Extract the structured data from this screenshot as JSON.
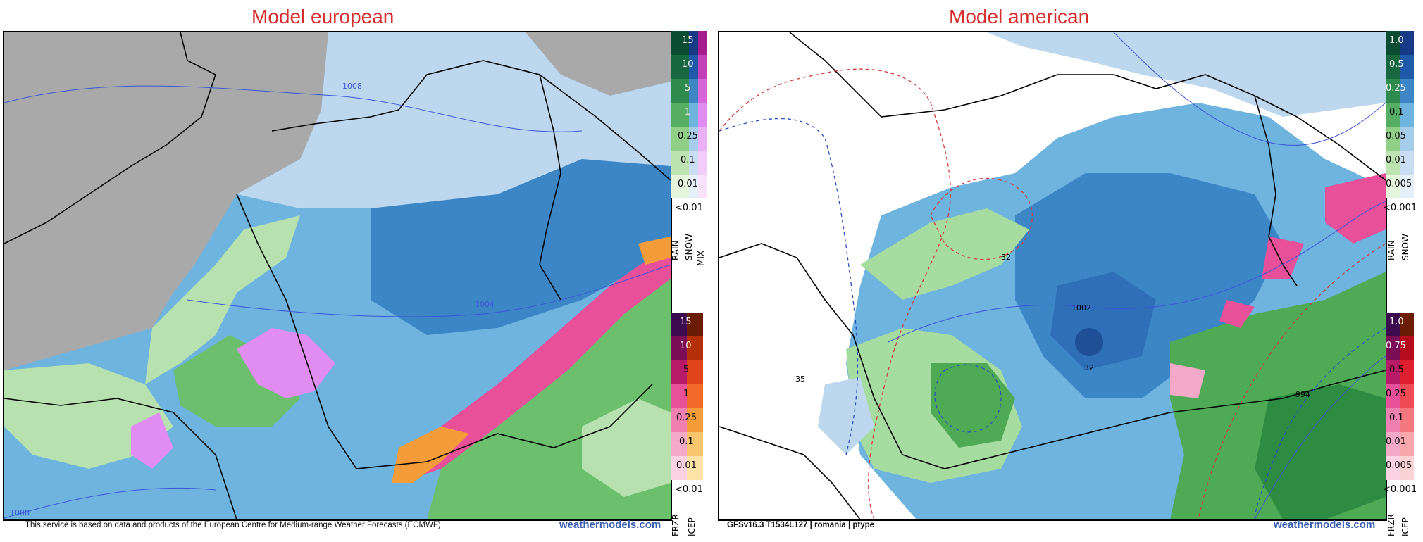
{
  "titles": {
    "left": "Model european",
    "right": "Model american"
  },
  "footer": {
    "left_text": "This service is based on data and products of the European Centre for Medium-range Weather Forecasts (ECMWF)",
    "left_brand": "weathermodels.com",
    "right_text": "GFSv16.3 T1534L127 | romania | ptype",
    "right_brand": "weathermodels.com"
  },
  "left_map": {
    "isobar_labels": [
      "1008",
      "1004",
      "1008"
    ],
    "colors": {
      "land_gray": "#a9a9a9",
      "rain_light": "#bcd7ee",
      "rain_mid": "#6fb3df",
      "rain_dark": "#3d86c6",
      "snow_green": "#6cbf6c",
      "snow_light": "#b7e2b0",
      "mix": "#e18cf0",
      "frzr": "#e8509a",
      "icep": "#f59c3a"
    }
  },
  "right_map": {
    "isobar_labels": [
      "32",
      "1002",
      "32",
      "35",
      "994"
    ],
    "colors": {
      "rain_light": "#bcd7ee",
      "rain_mid": "#6fb3df",
      "rain_dark": "#2f6fb7",
      "snow_green": "#4faa55",
      "snow_light": "#a6dca0",
      "frzr": "#e8509a",
      "isotherm_red": "#d23b3b",
      "isotherm_blue": "#2a4fbf"
    }
  },
  "left_legend_top": {
    "labels": [
      "15",
      "10",
      "5",
      "1",
      "0.25",
      "0.1",
      "0.01",
      "<0.01"
    ],
    "columns": [
      "RAIN",
      "SNOW",
      "MIX"
    ]
  },
  "left_legend_bottom": {
    "labels": [
      "15",
      "10",
      "5",
      "1",
      "0.25",
      "0.1",
      "0.01",
      "<0.01"
    ],
    "columns": [
      "FRZR",
      "ICEP"
    ]
  },
  "right_legend_top": {
    "labels": [
      "1.0",
      "0.5",
      "0.25",
      "0.1",
      "0.05",
      "0.01",
      "0.005",
      "<0.001"
    ],
    "columns": [
      "RAIN",
      "SNOW"
    ]
  },
  "right_legend_bottom": {
    "labels": [
      "1.0",
      "0.75",
      "0.5",
      "0.25",
      "0.1",
      "0.01",
      "0.005",
      "<0.001"
    ],
    "columns": [
      "FRZR",
      "ICEP"
    ]
  }
}
